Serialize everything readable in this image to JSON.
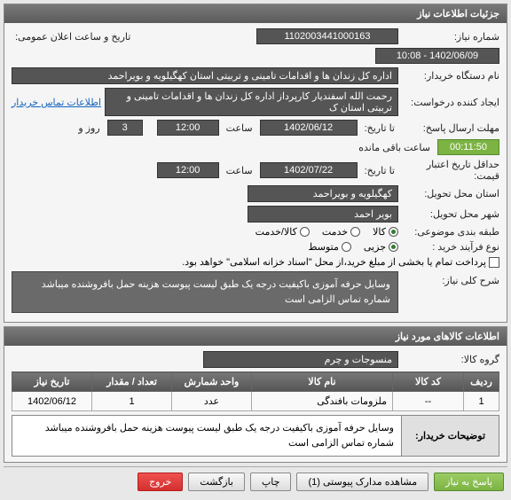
{
  "panels": {
    "info": {
      "title": "جزئیات اطلاعات نیاز"
    },
    "items": {
      "title": "اطلاعات کالاهای مورد نیاز"
    }
  },
  "labels": {
    "need_no": "شماره نیاز:",
    "announce_dt": "تاریخ و ساعت اعلان عمومی:",
    "buyer_org": "نام دستگاه خریدار:",
    "requester": "ایجاد کننده درخواست:",
    "contact_link": "اطلاعات تماس خریدار",
    "reply_deadline": "مهلت ارسال پاسخ:",
    "until": "تا تاریخ:",
    "hour": "ساعت",
    "day_and": "روز و",
    "remaining": "ساعت باقی مانده",
    "price_validity": "حداقل تاریخ اعتبار قیمت:",
    "until_date": "تا تاریخ:",
    "province": "استان محل تحویل:",
    "city": "شهر محل تحویل:",
    "category": "طبقه بندی موضوعی:",
    "process": "نوع فرآیند خرید :",
    "payment_note": "پرداخت تمام یا بخشی از مبلغ خرید،از محل \"اسناد خزانه اسلامی\" خواهد بود.",
    "need_desc": "شرح کلی نیاز:",
    "goods_group": "گروه کالا:",
    "buyer_notes": "توضیحات خریدار:"
  },
  "values": {
    "need_no": "1102003441000163",
    "announce_dt": "1402/06/09 - 10:08",
    "buyer_org": "اداره کل زندان ها و اقدامات تامینی و تربیتی استان کهگیلویه و بویراحمد",
    "requester": "رحمت الله اسفندیار کارپرداز اداره کل زندان ها و اقدامات تامینی و تربیتی استان ک",
    "reply_date": "1402/06/12",
    "reply_hour": "12:00",
    "days_left": "3",
    "time_left": "00:11:50",
    "price_date": "1402/07/22",
    "price_hour": "12:00",
    "province": "کهگیلویه و بویراحمد",
    "city": "بویر احمد",
    "need_desc": "وسایل حرفه آموزی باکیفیت درجه یک طبق لیست پیوست هزینه حمل بافروشنده میباشد شماره تماس الزامی است",
    "goods_group": "منسوجات و چرم",
    "buyer_notes": "وسایل حرفه آموزی باکیفیت درجه یک طبق لیست پیوست هزینه حمل بافروشنده میباشد شماره تماس الزامی است"
  },
  "category_opts": {
    "goods": "کالا",
    "service": "خدمت",
    "both": "کالا/خدمت"
  },
  "process_opts": {
    "minor": "جزیی",
    "medium": "متوسط"
  },
  "table": {
    "headers": {
      "row": "ردیف",
      "code": "کد کالا",
      "name": "نام کالا",
      "unit": "واحد شمارش",
      "qty": "تعداد / مقدار",
      "date": "تاریخ نیاز"
    },
    "rows": [
      {
        "row": "1",
        "code": "--",
        "name": "ملزومات بافندگی",
        "unit": "عدد",
        "qty": "1",
        "date": "1402/06/12"
      }
    ]
  },
  "buttons": {
    "respond": "پاسخ به نیاز",
    "attachments": "مشاهده مدارک پیوستی (1)",
    "print": "چاپ",
    "back": "بازگشت",
    "exit": "خروج"
  }
}
